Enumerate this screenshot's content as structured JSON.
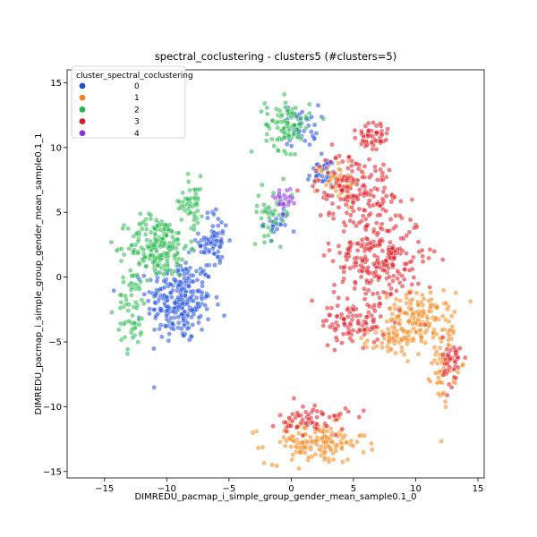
{
  "chart_data": {
    "type": "scatter",
    "title": "spectral_coclustering - clusters5 (#clusters=5)",
    "xlabel": "DIMREDU_pacmap_i_simple_group_gender_mean_sample0.1_0",
    "ylabel": "DIMREDU_pacmap_i_simple_group_gender_mean_sample0.1_1",
    "xlim": [
      -18,
      15.5
    ],
    "ylim": [
      -15.5,
      16
    ],
    "xticks": [
      -15,
      -10,
      -5,
      0,
      5,
      10,
      15
    ],
    "yticks": [
      -15,
      -10,
      -5,
      0,
      5,
      10,
      15
    ],
    "xtick_labels": [
      "−15",
      "−10",
      "−5",
      "0",
      "5",
      "10",
      "15"
    ],
    "ytick_labels": [
      "−15",
      "−10",
      "−5",
      "0",
      "5",
      "10",
      "15"
    ],
    "grid": false,
    "legend": {
      "title": "cluster_spectral_coclustering",
      "placement": "top-left",
      "entries": [
        "0",
        "1",
        "2",
        "3",
        "4"
      ]
    },
    "colors": [
      "#1f4fe0",
      "#f58518",
      "#22b848",
      "#e01a22",
      "#8a35d8"
    ],
    "series": [
      {
        "name": "0",
        "approx_regions": [
          {
            "cx": -9.0,
            "cy": -1.8,
            "sx": 1.3,
            "sy": 1.6,
            "n": 260
          },
          {
            "cx": -6.2,
            "cy": 2.8,
            "sx": 0.6,
            "sy": 1.2,
            "n": 70
          },
          {
            "cx": 0.8,
            "cy": 11.7,
            "sx": 0.7,
            "sy": 0.8,
            "n": 40
          },
          {
            "cx": 2.5,
            "cy": 8.0,
            "sx": 0.6,
            "sy": 0.6,
            "n": 35
          },
          {
            "cx": -1.2,
            "cy": 4.2,
            "sx": 0.5,
            "sy": 0.6,
            "n": 25
          }
        ]
      },
      {
        "name": "1",
        "approx_regions": [
          {
            "cx": 10.2,
            "cy": -3.2,
            "sx": 1.4,
            "sy": 1.0,
            "n": 150
          },
          {
            "cx": 12.3,
            "cy": -6.5,
            "sx": 0.5,
            "sy": 1.6,
            "n": 60
          },
          {
            "cx": 8.0,
            "cy": -5.0,
            "sx": 1.0,
            "sy": 0.5,
            "n": 50
          },
          {
            "cx": 2.0,
            "cy": -12.8,
            "sx": 2.0,
            "sy": 0.8,
            "n": 150
          },
          {
            "cx": 3.8,
            "cy": 7.5,
            "sx": 0.9,
            "sy": 0.8,
            "n": 45
          }
        ]
      },
      {
        "name": "2",
        "approx_regions": [
          {
            "cx": -10.7,
            "cy": 2.4,
            "sx": 1.2,
            "sy": 1.2,
            "n": 200
          },
          {
            "cx": -12.8,
            "cy": -2.5,
            "sx": 0.6,
            "sy": 1.6,
            "n": 60
          },
          {
            "cx": -8.0,
            "cy": 5.8,
            "sx": 0.5,
            "sy": 1.0,
            "n": 50
          },
          {
            "cx": -0.3,
            "cy": 11.8,
            "sx": 0.9,
            "sy": 1.0,
            "n": 90
          },
          {
            "cx": -1.5,
            "cy": 5.0,
            "sx": 0.8,
            "sy": 1.0,
            "n": 40
          }
        ]
      },
      {
        "name": "3",
        "approx_regions": [
          {
            "cx": 7.0,
            "cy": 1.5,
            "sx": 1.8,
            "sy": 1.8,
            "n": 260
          },
          {
            "cx": 5.0,
            "cy": -3.5,
            "sx": 1.3,
            "sy": 0.8,
            "n": 90
          },
          {
            "cx": 5.0,
            "cy": 7.0,
            "sx": 1.5,
            "sy": 1.3,
            "n": 150
          },
          {
            "cx": 6.5,
            "cy": 10.8,
            "sx": 0.7,
            "sy": 0.8,
            "n": 50
          },
          {
            "cx": 13.0,
            "cy": -6.5,
            "sx": 0.4,
            "sy": 1.0,
            "n": 40
          },
          {
            "cx": 1.8,
            "cy": -11.0,
            "sx": 1.4,
            "sy": 0.6,
            "n": 60
          }
        ]
      },
      {
        "name": "4",
        "approx_regions": [
          {
            "cx": -0.7,
            "cy": 6.0,
            "sx": 0.4,
            "sy": 0.4,
            "n": 25
          }
        ]
      }
    ]
  }
}
